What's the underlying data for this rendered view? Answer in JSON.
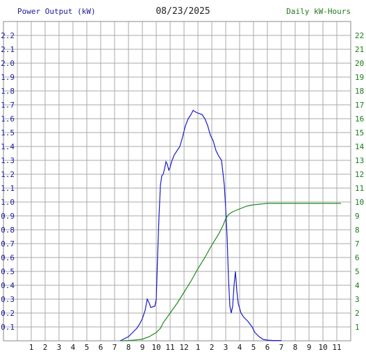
{
  "header": {
    "left_title": "Power Output (kW)",
    "date": "08/23/2025",
    "right_title": "Daily kW-Hours"
  },
  "colors": {
    "power": "#1a1acc",
    "energy": "#1a8a1a",
    "grid": "#a8a8a8",
    "axis_text_left": "#1a1a99",
    "axis_text_right": "#1a7a1a",
    "axis_text_x": "#111111"
  },
  "chart_data": {
    "type": "line",
    "grid": true,
    "x_ticks": [
      "1",
      "2",
      "3",
      "4",
      "5",
      "6",
      "7",
      "8",
      "9",
      "10",
      "11",
      "12",
      "1",
      "2",
      "3",
      "4",
      "5",
      "6",
      "7",
      "8",
      "9",
      "10",
      "11"
    ],
    "y_left": {
      "label": "Power Output (kW)",
      "ticks": [
        "0.1",
        "0.2",
        "0.3",
        "0.4",
        "0.5",
        "0.6",
        "0.7",
        "0.8",
        "0.9",
        "1.0",
        "1.1",
        "1.2",
        "1.3",
        "1.4",
        "1.5",
        "1.6",
        "1.7",
        "1.8",
        "1.9",
        "2.0",
        "2.1",
        "2.2"
      ],
      "range": [
        0,
        2.3
      ]
    },
    "y_right": {
      "label": "Daily kW-Hours",
      "ticks": [
        "1",
        "2",
        "3",
        "4",
        "5",
        "6",
        "7",
        "8",
        "9",
        "10",
        "11",
        "12",
        "13",
        "14",
        "15",
        "16",
        "17",
        "18",
        "19",
        "20",
        "21",
        "22"
      ],
      "range": [
        0,
        23
      ]
    },
    "series": [
      {
        "name": "Power Output (kW)",
        "axis": "left",
        "points": [
          [
            7.4,
            0
          ],
          [
            7.6,
            0.01
          ],
          [
            7.8,
            0.02
          ],
          [
            8.0,
            0.03
          ],
          [
            8.2,
            0.05
          ],
          [
            8.4,
            0.07
          ],
          [
            8.6,
            0.09
          ],
          [
            8.8,
            0.12
          ],
          [
            9.0,
            0.16
          ],
          [
            9.2,
            0.22
          ],
          [
            9.35,
            0.3
          ],
          [
            9.5,
            0.27
          ],
          [
            9.6,
            0.24
          ],
          [
            9.9,
            0.25
          ],
          [
            10.0,
            0.3
          ],
          [
            10.1,
            0.62
          ],
          [
            10.2,
            0.9
          ],
          [
            10.3,
            1.12
          ],
          [
            10.4,
            1.19
          ],
          [
            10.5,
            1.2
          ],
          [
            10.6,
            1.24
          ],
          [
            10.7,
            1.29
          ],
          [
            10.8,
            1.27
          ],
          [
            10.9,
            1.23
          ],
          [
            11.0,
            1.25
          ],
          [
            11.1,
            1.29
          ],
          [
            11.3,
            1.34
          ],
          [
            11.5,
            1.37
          ],
          [
            11.7,
            1.4
          ],
          [
            11.9,
            1.47
          ],
          [
            12.1,
            1.55
          ],
          [
            12.3,
            1.6
          ],
          [
            12.5,
            1.63
          ],
          [
            12.65,
            1.66
          ],
          [
            12.8,
            1.65
          ],
          [
            13.0,
            1.64
          ],
          [
            13.3,
            1.63
          ],
          [
            13.5,
            1.6
          ],
          [
            13.7,
            1.55
          ],
          [
            13.9,
            1.48
          ],
          [
            14.1,
            1.44
          ],
          [
            14.3,
            1.37
          ],
          [
            14.5,
            1.33
          ],
          [
            14.7,
            1.3
          ],
          [
            14.9,
            1.12
          ],
          [
            15.0,
            0.95
          ],
          [
            15.1,
            0.75
          ],
          [
            15.2,
            0.45
          ],
          [
            15.3,
            0.25
          ],
          [
            15.4,
            0.2
          ],
          [
            15.5,
            0.25
          ],
          [
            15.6,
            0.4
          ],
          [
            15.7,
            0.5
          ],
          [
            15.8,
            0.36
          ],
          [
            15.9,
            0.27
          ],
          [
            16.1,
            0.2
          ],
          [
            16.3,
            0.17
          ],
          [
            16.6,
            0.14
          ],
          [
            16.9,
            0.1
          ],
          [
            17.1,
            0.06
          ],
          [
            17.4,
            0.03
          ],
          [
            17.7,
            0.01
          ],
          [
            18.0,
            0.005
          ],
          [
            18.4,
            0.002
          ],
          [
            19.0,
            0.002
          ]
        ]
      },
      {
        "name": "Daily kW-Hours",
        "axis": "right",
        "points": [
          [
            7.5,
            0
          ],
          [
            8.0,
            0.02
          ],
          [
            8.5,
            0.06
          ],
          [
            9.0,
            0.12
          ],
          [
            9.5,
            0.3
          ],
          [
            10.0,
            0.6
          ],
          [
            10.3,
            0.9
          ],
          [
            10.5,
            1.3
          ],
          [
            11.0,
            2.0
          ],
          [
            11.5,
            2.7
          ],
          [
            12.0,
            3.5
          ],
          [
            12.5,
            4.3
          ],
          [
            13.0,
            5.2
          ],
          [
            13.5,
            6.0
          ],
          [
            14.0,
            6.9
          ],
          [
            14.5,
            7.7
          ],
          [
            14.8,
            8.3
          ],
          [
            15.0,
            8.8
          ],
          [
            15.2,
            9.1
          ],
          [
            15.5,
            9.3
          ],
          [
            16.0,
            9.5
          ],
          [
            16.5,
            9.7
          ],
          [
            17.0,
            9.8
          ],
          [
            17.5,
            9.85
          ],
          [
            18.0,
            9.9
          ],
          [
            23.3,
            9.9
          ]
        ]
      }
    ]
  }
}
